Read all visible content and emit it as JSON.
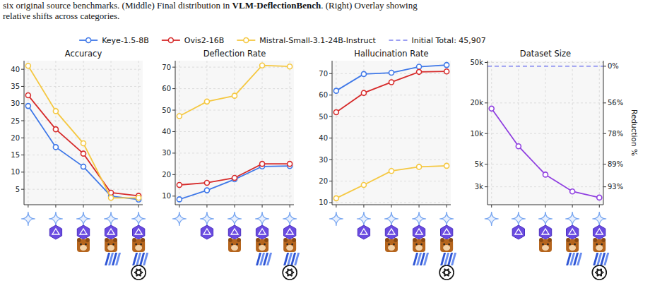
{
  "caption": {
    "text_before": "six original source benchmarks. (Middle) Final distribution in ",
    "emphasis": "VLM-DeflectionBench",
    "text_after": ". (Right) Overlay showing",
    "line2": "relative shifts across categories."
  },
  "chart_data": [
    {
      "type": "line",
      "title": "Accuracy",
      "categories": [
        null,
        null,
        null,
        null,
        null
      ],
      "series": [
        {
          "name": "Keye-1.5-8B",
          "color": "#3f78e8",
          "values": [
            29.3,
            17.3,
            11.6,
            3.0,
            2.0
          ]
        },
        {
          "name": "Ovis2-16B",
          "color": "#d62b2b",
          "values": [
            32.4,
            22.5,
            15.4,
            4.0,
            3.1
          ]
        },
        {
          "name": "Mistral-Small-3.1-24B-Instruct",
          "color": "#f5c842",
          "values": [
            41.0,
            27.8,
            18.4,
            2.5,
            2.5
          ]
        }
      ],
      "ylim": [
        0.5,
        42.5
      ],
      "yticks": [
        5,
        10,
        15,
        20,
        25,
        30,
        35,
        40
      ],
      "grid": true,
      "marker": "circle",
      "legend": "top"
    },
    {
      "type": "line",
      "title": "Deflection Rate",
      "categories": [
        null,
        null,
        null,
        null,
        null
      ],
      "series": [
        {
          "name": "Keye-1.5-8B",
          "color": "#3f78e8",
          "values": [
            8.5,
            12.7,
            17.8,
            23.8,
            24.0
          ]
        },
        {
          "name": "Ovis2-16B",
          "color": "#d62b2b",
          "values": [
            15.2,
            16.2,
            18.5,
            25.0,
            25.0
          ]
        },
        {
          "name": "Mistral-Small-3.1-24B-Instruct",
          "color": "#f5c842",
          "values": [
            47.2,
            54.0,
            56.7,
            70.8,
            70.3
          ]
        }
      ],
      "ylim": [
        6,
        73
      ],
      "yticks": [
        10,
        20,
        30,
        40,
        50,
        60,
        70
      ],
      "grid": true,
      "marker": "circle"
    },
    {
      "type": "line",
      "title": "Hallucination Rate",
      "categories": [
        null,
        null,
        null,
        null,
        null
      ],
      "series": [
        {
          "name": "Keye-1.5-8B",
          "color": "#3f78e8",
          "values": [
            62.0,
            69.8,
            70.4,
            73.2,
            74.0
          ]
        },
        {
          "name": "Ovis2-16B",
          "color": "#d62b2b",
          "values": [
            52.0,
            61.0,
            66.0,
            70.8,
            71.0
          ]
        },
        {
          "name": "Mistral-Small-3.1-24B-Instruct",
          "color": "#f5c842",
          "values": [
            12.0,
            18.2,
            24.7,
            26.6,
            27.1
          ]
        }
      ],
      "ylim": [
        9,
        76
      ],
      "yticks": [
        10,
        20,
        30,
        40,
        50,
        60,
        70
      ],
      "grid": true,
      "marker": "circle"
    },
    {
      "type": "line",
      "title": "Dataset Size",
      "categories": [
        null,
        null,
        null,
        null,
        null
      ],
      "log": "y",
      "series": [
        {
          "color": "#9040e0",
          "values": [
            17600,
            7500,
            3950,
            2700,
            2350
          ]
        }
      ],
      "ylim": [
        2000,
        52000
      ],
      "yticks": [
        {
          "value": 3000,
          "label": "3k"
        },
        {
          "value": 5000,
          "label": "5k"
        },
        {
          "value": 10000,
          "label": "10k"
        },
        {
          "value": 20000,
          "label": "20k"
        },
        {
          "value": 50000,
          "label": "50k"
        }
      ],
      "reference_line": {
        "name": "Initial Total: 45,907",
        "value": 45907,
        "color": "#7b7ff0",
        "line_style": "dashed"
      },
      "y2label": "Reduction %",
      "y2lim": [
        95.64,
        -13.27
      ],
      "y2ticks": [
        {
          "value": 0,
          "label": "0%"
        },
        {
          "value": 56.43,
          "label": "56%"
        },
        {
          "value": 78.22,
          "label": "78%"
        },
        {
          "value": 89.11,
          "label": "89%"
        },
        {
          "value": 93.47,
          "label": "93%"
        }
      ],
      "grid": true,
      "marker": "circle"
    }
  ]
}
